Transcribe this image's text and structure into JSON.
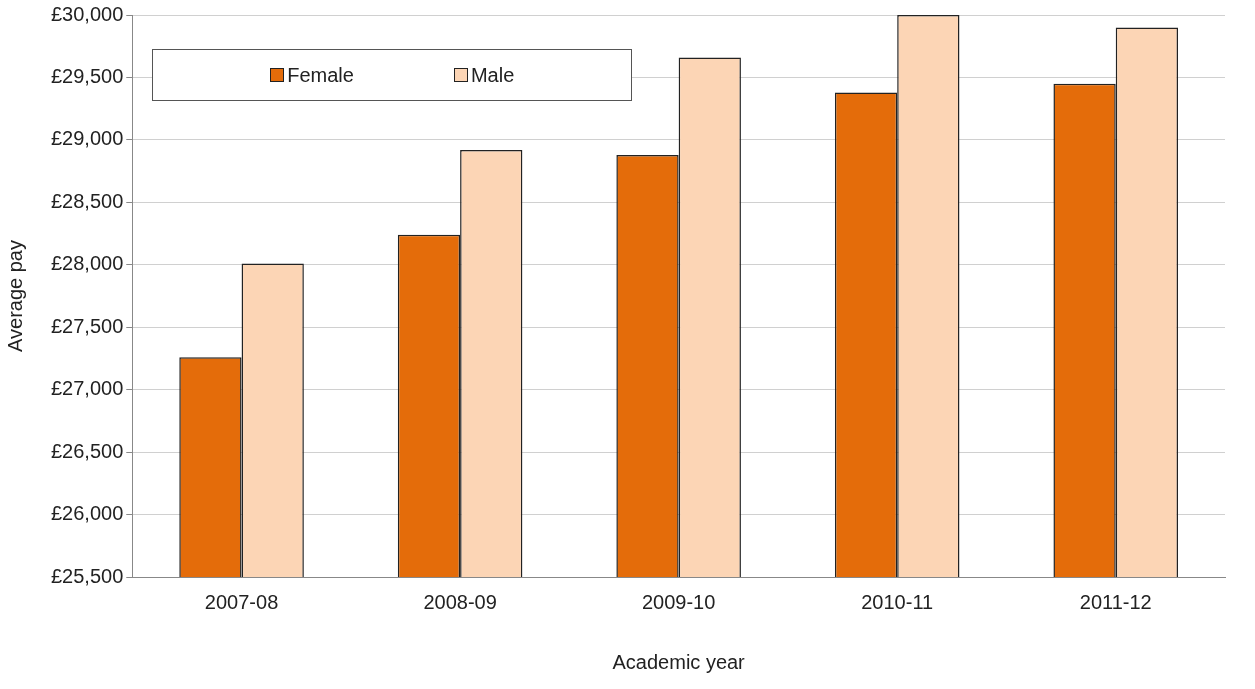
{
  "chart_data": {
    "type": "bar",
    "xlabel": "Academic year",
    "ylabel": "Average pay",
    "categories": [
      "2007-08",
      "2008-09",
      "2009-10",
      "2010-11",
      "2011-12"
    ],
    "series": [
      {
        "name": "Female",
        "color": "#e46c0a",
        "values": [
          27260,
          28240,
          28880,
          29380,
          29450
        ]
      },
      {
        "name": "Male",
        "color": "#fcd5b5",
        "values": [
          28010,
          28920,
          29660,
          30000,
          29900
        ]
      }
    ],
    "ylim": [
      25500,
      30000
    ],
    "yticks": [
      {
        "value": 25500,
        "label": "£25,500"
      },
      {
        "value": 26000,
        "label": "£26,000"
      },
      {
        "value": 26500,
        "label": "£26,500"
      },
      {
        "value": 27000,
        "label": "£27,000"
      },
      {
        "value": 27500,
        "label": "£27,500"
      },
      {
        "value": 28000,
        "label": "£28,000"
      },
      {
        "value": 28500,
        "label": "£28,500"
      },
      {
        "value": 29000,
        "label": "£29,000"
      },
      {
        "value": 29500,
        "label": "£29,500"
      },
      {
        "value": 30000,
        "label": "£30,000"
      }
    ],
    "grid": "y",
    "legend": "top left"
  }
}
